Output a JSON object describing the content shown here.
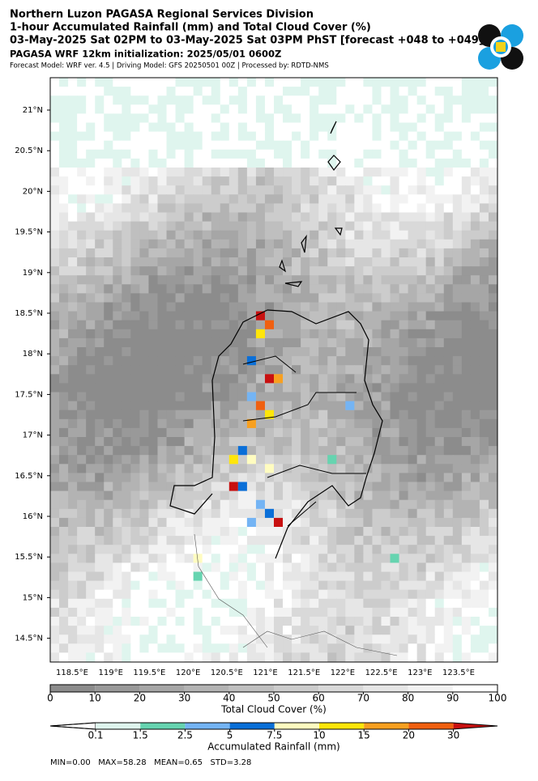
{
  "header": {
    "line1": "Northern Luzon PAGASA Regional Services Division",
    "line2": "1-hour Accumulated Rainfall (mm) and Total Cloud Cover (%)",
    "line3": "03-May-2025 Sat 02PM to 03-May-2025 Sat 03PM PhST [forecast +048 to +049]",
    "line4": "PAGASA WRF 12km initialization: 2025/05/01 0600Z",
    "line5": "Forecast Model: WRF ver. 4.5 | Driving Model: GFS 20250501 00Z | Processed by: RDTD-NMS"
  },
  "map": {
    "lat_labels": [
      "21°N",
      "20.5°N",
      "20°N",
      "19.5°N",
      "19°N",
      "18.5°N",
      "18°N",
      "17.5°N",
      "17°N",
      "16.5°N",
      "16°N",
      "15.5°N",
      "15°N",
      "14.5°N"
    ],
    "lon_labels": [
      "118.5°E",
      "119°E",
      "119.5°E",
      "120°E",
      "120.5°E",
      "121°E",
      "121.5°E",
      "122°E",
      "122.5°E",
      "123°E",
      "123.5°E"
    ]
  },
  "cloud_colorbar": {
    "title": "Total Cloud Cover (%)",
    "ticks": [
      0,
      10,
      20,
      30,
      40,
      50,
      60,
      70,
      80,
      90,
      100
    ],
    "colors": [
      "#8c8c8c",
      "#999999",
      "#a6a6a6",
      "#b3b3b3",
      "#bfbfbf",
      "#cccccc",
      "#d9d9d9",
      "#e6e6e6",
      "#f2f2f2",
      "#ffffff"
    ]
  },
  "rain_colorbar": {
    "title": "Accumulated Rainfall (mm)",
    "ticks": [
      0.1,
      1.5,
      2.5,
      5,
      7.5,
      10,
      15,
      20,
      30
    ],
    "colors": [
      "#dff5ee",
      "#66d4b0",
      "#74b4f4",
      "#0a6fd8",
      "#fffcc0",
      "#ffe60a",
      "#f8a020",
      "#f06010",
      "#c81010"
    ]
  },
  "stats": "MIN=0.00   MAX=58.28   MEAN=0.65   STD=3.28"
}
